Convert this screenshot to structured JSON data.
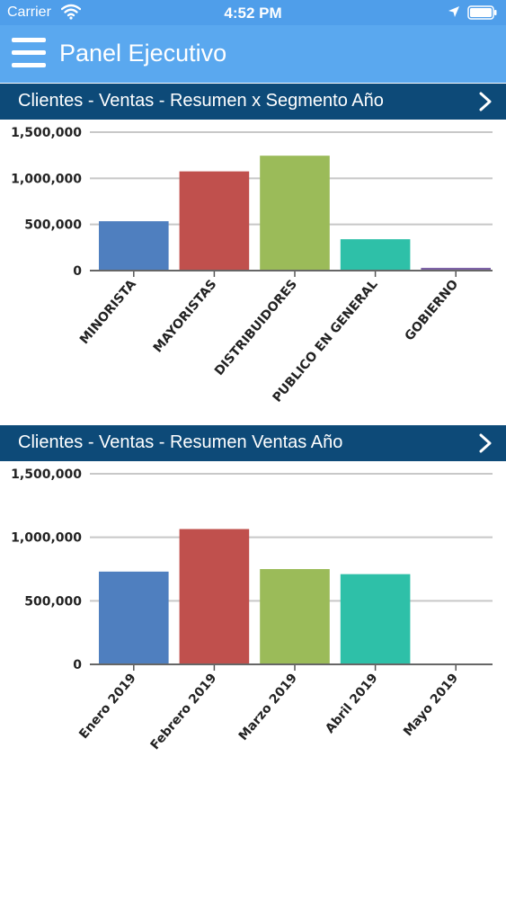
{
  "status_bar": {
    "carrier": "Carrier",
    "time": "4:52 PM"
  },
  "navbar": {
    "title": "Panel Ejecutivo"
  },
  "sections": [
    {
      "title": "Clientes - Ventas - Resumen x Segmento Año",
      "chart_data": {
        "type": "bar",
        "categories": [
          "MINORISTA",
          "MAYORISTAS",
          "DISTRIBUIDORES",
          "PUBLICO EN GENERAL",
          "GOBIERNO"
        ],
        "values": [
          535000,
          1075000,
          1245000,
          340000,
          30000
        ],
        "colors": [
          "#4f7fbf",
          "#c0504d",
          "#9bbb59",
          "#2ec0a8",
          "#7d62a6"
        ],
        "yticks": [
          "0",
          "500,000",
          "1,000,000",
          "1,500,000"
        ],
        "ylim": [
          0,
          1500000
        ],
        "grid": true,
        "tick_label_style": "uppercase"
      }
    },
    {
      "title": "Clientes - Ventas - Resumen Ventas Año",
      "chart_data": {
        "type": "bar",
        "categories": [
          "Enero 2019",
          "Febrero 2019",
          "Marzo 2019",
          "Abril 2019",
          "Mayo 2019"
        ],
        "values": [
          730000,
          1065000,
          750000,
          710000,
          0
        ],
        "colors": [
          "#4f7fbf",
          "#c0504d",
          "#9bbb59",
          "#2ec0a8",
          "#7d62a6"
        ],
        "yticks": [
          "0",
          "500,000",
          "1,000,000",
          "1,500,000"
        ],
        "ylim": [
          0,
          1500000
        ],
        "grid": true
      }
    }
  ]
}
